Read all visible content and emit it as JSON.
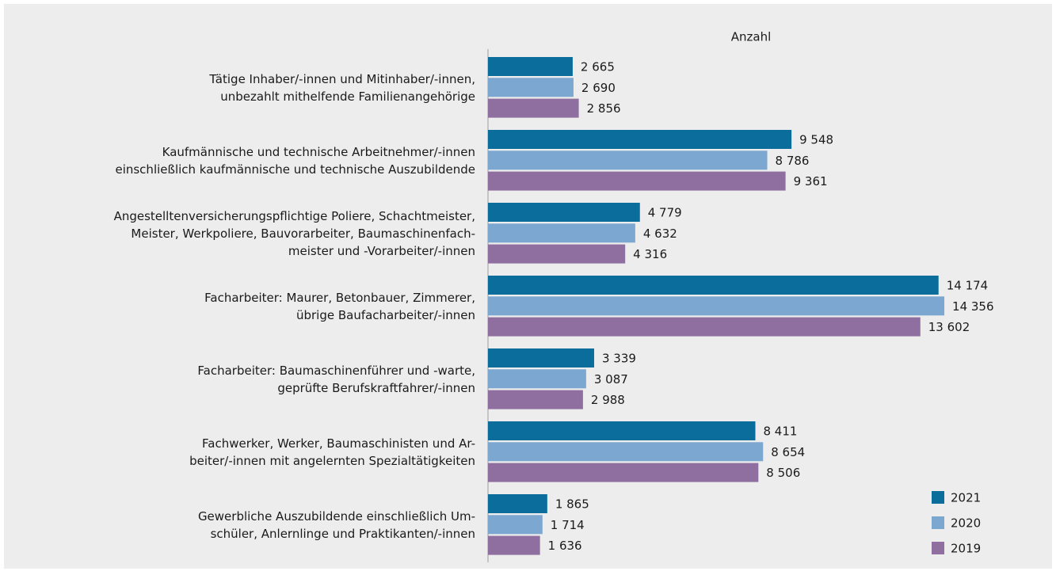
{
  "chart_data": {
    "type": "hbar",
    "x_label": "Anzahl",
    "categories": [
      [
        "Tätige Inhaber/-innen und Mitinhaber/-innen,",
        "unbezahlt mithelfende Familienangehörige"
      ],
      [
        "Kaufmännische und technische Arbeitnehmer/-innen",
        "einschließlich kaufmännische und technische Auszubildende"
      ],
      [
        "Angestelltenversicherungspflichtige Poliere, Schachtmeister,",
        "Meister, Werkpoliere, Bauvorarbeiter, Baumaschinenfach-",
        "meister  und -Vorarbeiter/-innen"
      ],
      [
        "Facharbeiter: Maurer, Betonbauer, Zimmerer,",
        "übrige Baufacharbeiter/-innen"
      ],
      [
        "Facharbeiter: Baumaschinenführer und -warte,",
        "geprüfte Berufskraftfahrer/-innen"
      ],
      [
        "Fachwerker, Werker, Baumaschinisten und Ar-",
        "beiter/-innen mit angelernten Spezialtätigkeiten"
      ],
      [
        "Gewerbliche Auszubildende einschließlich Um-",
        "schüler, Anlernlinge und Praktikanten/-innen"
      ]
    ],
    "series": [
      {
        "name": "2021",
        "color": "#0b6d9b",
        "values": [
          2665,
          9548,
          4779,
          14174,
          3339,
          8411,
          1865
        ],
        "value_labels": [
          "2 665",
          "9 548",
          "4 779",
          "14 174",
          "3 339",
          "8 411",
          "1 865"
        ]
      },
      {
        "name": "2020",
        "color": "#7ba7d0",
        "values": [
          2690,
          8786,
          4632,
          14356,
          3087,
          8654,
          1714
        ],
        "value_labels": [
          "2 690",
          "8 786",
          "4 632",
          "14 356",
          "3 087",
          "8 654",
          "1 714"
        ]
      },
      {
        "name": "2019",
        "color": "#8f6f9f",
        "values": [
          2856,
          9361,
          4316,
          13602,
          2988,
          8506,
          1636
        ],
        "value_labels": [
          "2 856",
          "9 361",
          "4 316",
          "13 602",
          "2 988",
          "8 506",
          "1 636"
        ]
      }
    ],
    "xlim": [
      0,
      16000
    ],
    "grid": false,
    "legend": "bottom-right"
  }
}
